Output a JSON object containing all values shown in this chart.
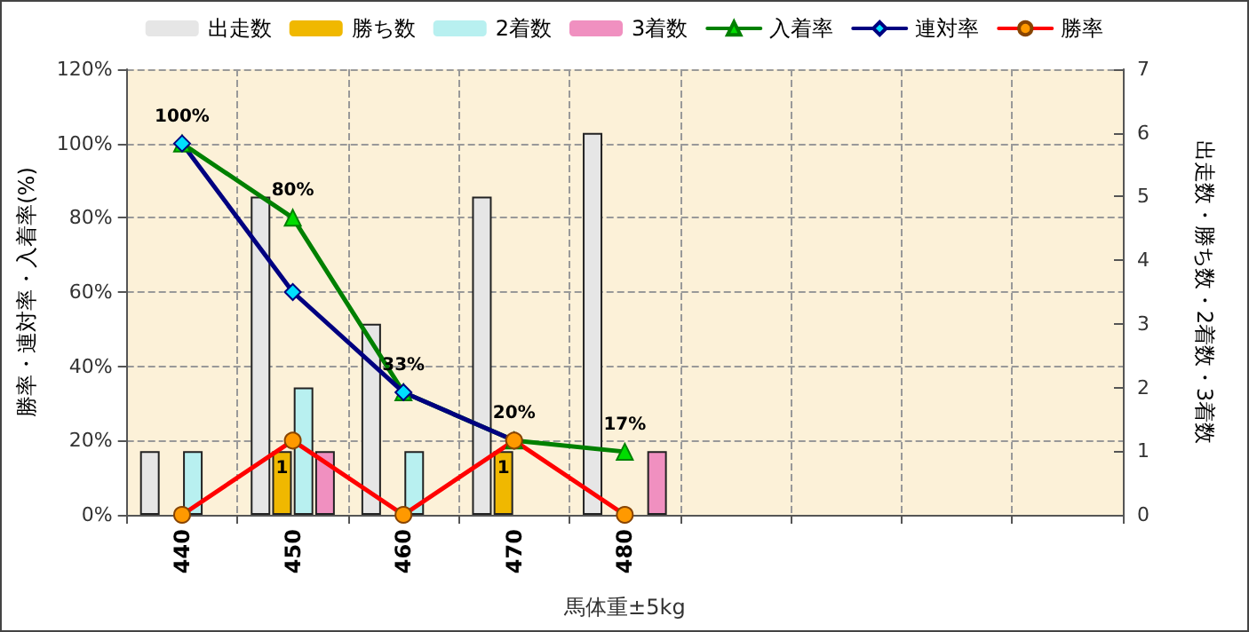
{
  "chart_data": {
    "type": "bar",
    "xlabel": "馬体重±5kg",
    "ylabel": "勝率・連対率・入着率(%)",
    "y2label": "出走数・勝ち数・2着数・3着数",
    "categories": [
      "440",
      "450",
      "460",
      "470",
      "480",
      null,
      null,
      null,
      null
    ],
    "series": [
      {
        "name": "出走数",
        "axis": "y2",
        "color": "#e6e6e6",
        "values": [
          1,
          5,
          3,
          5,
          6,
          null,
          null,
          null,
          null
        ]
      },
      {
        "name": "勝ち数",
        "axis": "y2",
        "color": "#f0b800",
        "values": [
          0,
          1,
          0,
          1,
          0,
          null,
          null,
          null,
          null
        ],
        "value_labels": [
          null,
          "1",
          null,
          "1",
          null,
          null,
          null,
          null,
          null
        ]
      },
      {
        "name": "2着数",
        "axis": "y2",
        "color": "#b8f0f0",
        "values": [
          1,
          2,
          1,
          0,
          0,
          null,
          null,
          null,
          null
        ]
      },
      {
        "name": "3着数",
        "axis": "y2",
        "color": "#f090c0",
        "values": [
          0,
          1,
          0,
          0,
          1,
          null,
          null,
          null,
          null
        ]
      },
      {
        "name": "入着率",
        "type": "line",
        "axis": "y",
        "color": "#008000",
        "marker": "triangle",
        "values": [
          100,
          80,
          33,
          20,
          17,
          null,
          null,
          null,
          null
        ],
        "value_labels": [
          "100%",
          "80%",
          "33%",
          "20%",
          "17%",
          null,
          null,
          null,
          null
        ]
      },
      {
        "name": "連対率",
        "type": "line",
        "axis": "y",
        "color": "#000080",
        "marker": "diamond",
        "values": [
          100,
          60,
          33,
          20,
          null,
          null,
          null,
          null,
          null
        ]
      },
      {
        "name": "勝率",
        "type": "line",
        "axis": "y",
        "color": "#ff0000",
        "marker": "circle",
        "values": [
          0,
          20,
          0,
          20,
          0,
          null,
          null,
          null,
          null
        ]
      }
    ],
    "ylim": [
      0,
      120
    ],
    "yticks": [
      {
        "value": 0,
        "label": "0%"
      },
      {
        "value": 20,
        "label": "20%"
      },
      {
        "value": 40,
        "label": "40%"
      },
      {
        "value": 60,
        "label": "60%"
      },
      {
        "value": 80,
        "label": "80%"
      },
      {
        "value": 100,
        "label": "100%"
      },
      {
        "value": 120,
        "label": "120%"
      }
    ],
    "y2lim": [
      0,
      7
    ],
    "y2ticks": [
      0,
      1,
      2,
      3,
      4,
      5,
      6,
      7
    ],
    "grid": true,
    "legend": "top",
    "line_style": "solid"
  }
}
